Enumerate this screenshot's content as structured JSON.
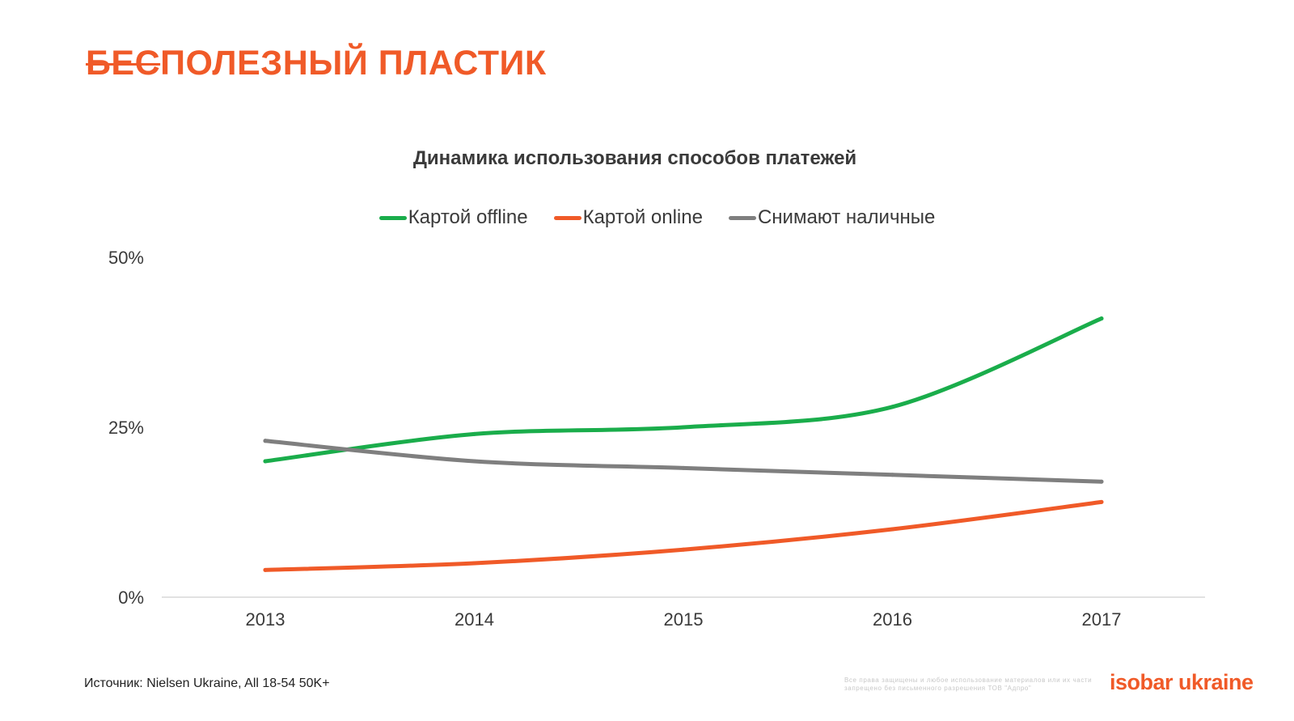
{
  "header": {
    "title_struck": "БЕС",
    "title_rest": "ПОЛЕЗНЫЙ ПЛАСТИК"
  },
  "colors": {
    "accent": "#f05a28",
    "green": "#1aad4b",
    "orange": "#f05a28",
    "gray": "#7f7f7f"
  },
  "chart_data": {
    "type": "line",
    "title": "Динамика использования способов платежей",
    "categories": [
      "2013",
      "2014",
      "2015",
      "2016",
      "2017"
    ],
    "y_ticks": [
      "0%",
      "25%",
      "50%"
    ],
    "y_tick_values": [
      0,
      25,
      50
    ],
    "ylim": [
      0,
      50
    ],
    "xlabel": "",
    "ylabel": "",
    "grid": false,
    "legend_position": "top",
    "series": [
      {
        "name": "Картой offline",
        "color": "#1aad4b",
        "values": [
          20,
          24,
          25,
          28,
          41
        ]
      },
      {
        "name": "Картой online",
        "color": "#f05a28",
        "values": [
          4,
          5,
          7,
          10,
          14
        ]
      },
      {
        "name": "Снимают наличные",
        "color": "#7f7f7f",
        "values": [
          23,
          20,
          19,
          18,
          17
        ]
      }
    ]
  },
  "footer": {
    "source": "Источник: Nielsen Ukraine, All 18-54 50K+",
    "copyright": "Все права защищены и любое использование материалов или их части запрещено без письменного разрешения ТОВ \"Адпро\"",
    "logo": "isobar ukraine"
  }
}
